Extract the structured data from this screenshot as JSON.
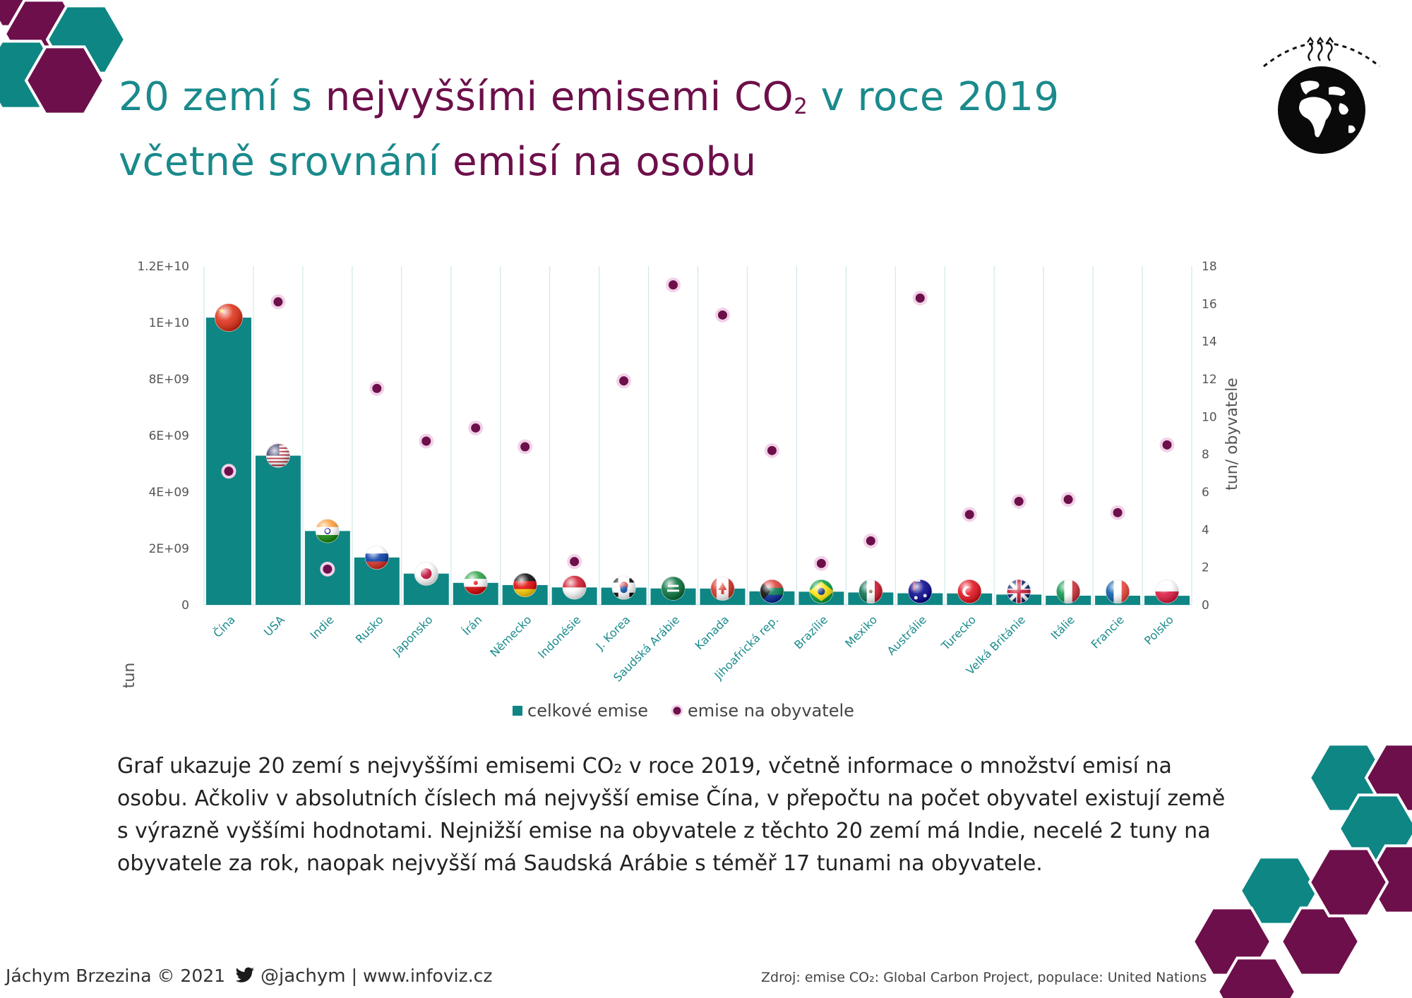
{
  "title": {
    "line1_part1": "20 zemí s ",
    "line1_highlight": "nejvyššími emisemi CO",
    "line1_sub": "2",
    "line1_part2": " v roce 2019",
    "line2_part1": "včetně srovnání ",
    "line2_highlight": "emisí na osobu"
  },
  "colors": {
    "teal": "#0e8684",
    "plum": "#6d0f4b",
    "title_teal": "#1a8a8c",
    "label_teal": "#1a8a8c"
  },
  "chart_data": {
    "type": "bar",
    "categories": [
      "Čína",
      "USA",
      "Indie",
      "Rusko",
      "Japonsko",
      "Írán",
      "Německo",
      "Indonésie",
      "J. Korea",
      "Saudská Arábie",
      "Kanada",
      "Jihoafrická rep.",
      "Brazílie",
      "Mexiko",
      "Austrálie",
      "Turecko",
      "Velká Británie",
      "Itálie",
      "Francie",
      "Polsko"
    ],
    "series": [
      {
        "name": "celkové emise",
        "axis": "left",
        "render": "bar",
        "values": [
          10175000000,
          5285000000,
          2616000000,
          1678000000,
          1107000000,
          780000000,
          702000000,
          618000000,
          611000000,
          582000000,
          577000000,
          479000000,
          466000000,
          439000000,
          411000000,
          405000000,
          365000000,
          325000000,
          324000000,
          322000000
        ]
      },
      {
        "name": "emise na obyvatele",
        "axis": "right",
        "render": "point",
        "values": [
          7.1,
          16.1,
          1.9,
          11.5,
          8.7,
          9.4,
          8.4,
          2.3,
          11.9,
          17.0,
          15.4,
          8.2,
          2.2,
          3.4,
          16.3,
          4.8,
          5.5,
          5.6,
          4.9,
          8.5
        ]
      }
    ],
    "flags": [
      "cn",
      "us",
      "in",
      "ru",
      "jp",
      "ir",
      "de",
      "id",
      "kr",
      "sa",
      "ca",
      "za",
      "br",
      "mx",
      "au",
      "tr",
      "gb",
      "it",
      "fr",
      "pl"
    ],
    "left_axis": {
      "label": "tun",
      "min": 0,
      "max": 12000000000,
      "ticks": [
        0,
        2000000000,
        4000000000,
        6000000000,
        8000000000,
        10000000000,
        12000000000
      ],
      "tick_labels": [
        "0",
        "2E+09",
        "4E+09",
        "6E+09",
        "8E+09",
        "1E+10",
        "1.2E+10"
      ]
    },
    "right_axis": {
      "label": "tun/ obyvatele",
      "min": 0,
      "max": 18,
      "ticks": [
        0,
        2,
        4,
        6,
        8,
        10,
        12,
        14,
        16,
        18
      ]
    },
    "grid": "vertical",
    "legend": {
      "position": "bottom",
      "bar_label": "celkové emise",
      "point_label": "emise na obyvatele"
    }
  },
  "description": {
    "text": "Graf ukazuje 20 zemí s nejvyššími emisemi CO₂ v roce 2019, včetně informace o množství emisí na osobu. Ačkoliv v absolutních číslech má nejvyšší emise Čína, v přepočtu na počet obyvatel existují země s výrazně vyššími hodnotami. Nejnižší emise na obyvatele z těchto 20 zemí má Indie, necelé 2 tuny na obyvatele za rok, naopak nejvyšší má Saudská Arábie s téměř 17 tunami na obyvatele."
  },
  "footer": {
    "author": "Jáchym Brzezina © 2021",
    "twitter_icon": "twitter-bird-icon",
    "twitter_handle": "@jachym",
    "separator": "|",
    "website": "www.infoviz.cz"
  },
  "source": {
    "text": "Zdroj: emise CO₂: Global Carbon Project, populace: United Nations"
  },
  "icons": {
    "logo": "earth-heat-icon",
    "corner": "leaf-network-icon"
  }
}
